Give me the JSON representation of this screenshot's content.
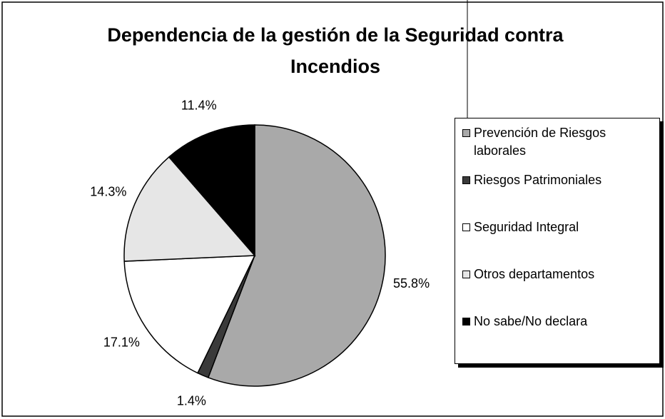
{
  "chart_data": {
    "type": "pie",
    "title": "Dependencia de la gestión de la Seguridad contra Incendios",
    "categories": [
      "Prevención de Riesgos laborales",
      "Riesgos Patrimoniales",
      "Seguridad Integral",
      "Otros departamentos",
      "No sabe/No declara"
    ],
    "values": [
      55.8,
      1.4,
      17.1,
      14.3,
      11.4
    ],
    "value_labels": [
      "55.8%",
      "1.4%",
      "17.1%",
      "14.3%",
      "11.4%"
    ],
    "colors": [
      "#a9a9a9",
      "#3a3a3a",
      "#ffffff",
      "#e6e6e6",
      "#000000"
    ],
    "legend": "right"
  }
}
